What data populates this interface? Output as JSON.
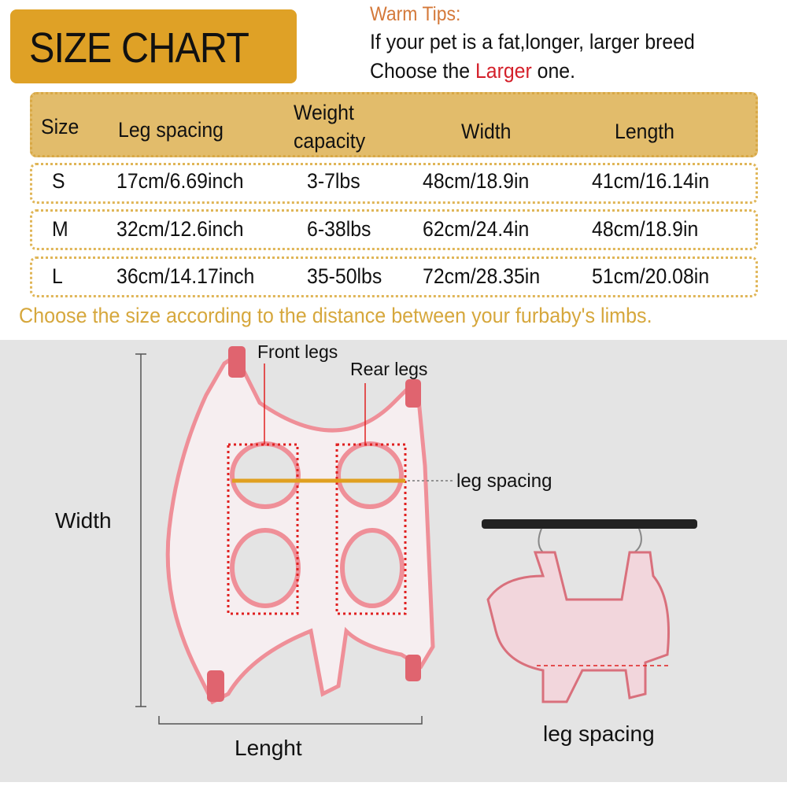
{
  "title": "SIZE CHART",
  "tips": {
    "heading": "Warm Tips:",
    "line1": "If your pet is a fat,longer, larger breed",
    "line2_prefix": "Choose the ",
    "line2_highlight": "Larger",
    "line2_suffix": " one."
  },
  "table": {
    "headers": [
      "Size",
      "Leg spacing",
      "Weight",
      "capacity",
      "Width",
      "Length"
    ],
    "rows": [
      [
        "S",
        "17cm/6.69inch",
        "3-7lbs",
        "48cm/18.9in",
        "41cm/16.14in"
      ],
      [
        "M",
        "32cm/12.6inch",
        "6-38lbs",
        "62cm/24.4in",
        "48cm/18.9in"
      ],
      [
        "L",
        "36cm/14.17inch",
        "35-50lbs",
        "72cm/28.35in",
        "51cm/20.08in"
      ]
    ]
  },
  "footnote": "Choose the size according to the distance between your furbaby's limbs.",
  "diagram": {
    "front_legs": "Front legs",
    "rear_legs": "Rear legs",
    "leg_spacing": "leg spacing",
    "width": "Width",
    "length": "Lenght",
    "leg_spacing_photo": "leg spacing"
  },
  "colors": {
    "title_bg": "#dfa126",
    "header_bg": "#e2bc6b",
    "tips_heading": "#d4793a",
    "highlight": "#d4202a",
    "footnote": "#d6a73c",
    "harness_pink": "#ef8f98",
    "photo_bg": "#e4e4e4"
  }
}
